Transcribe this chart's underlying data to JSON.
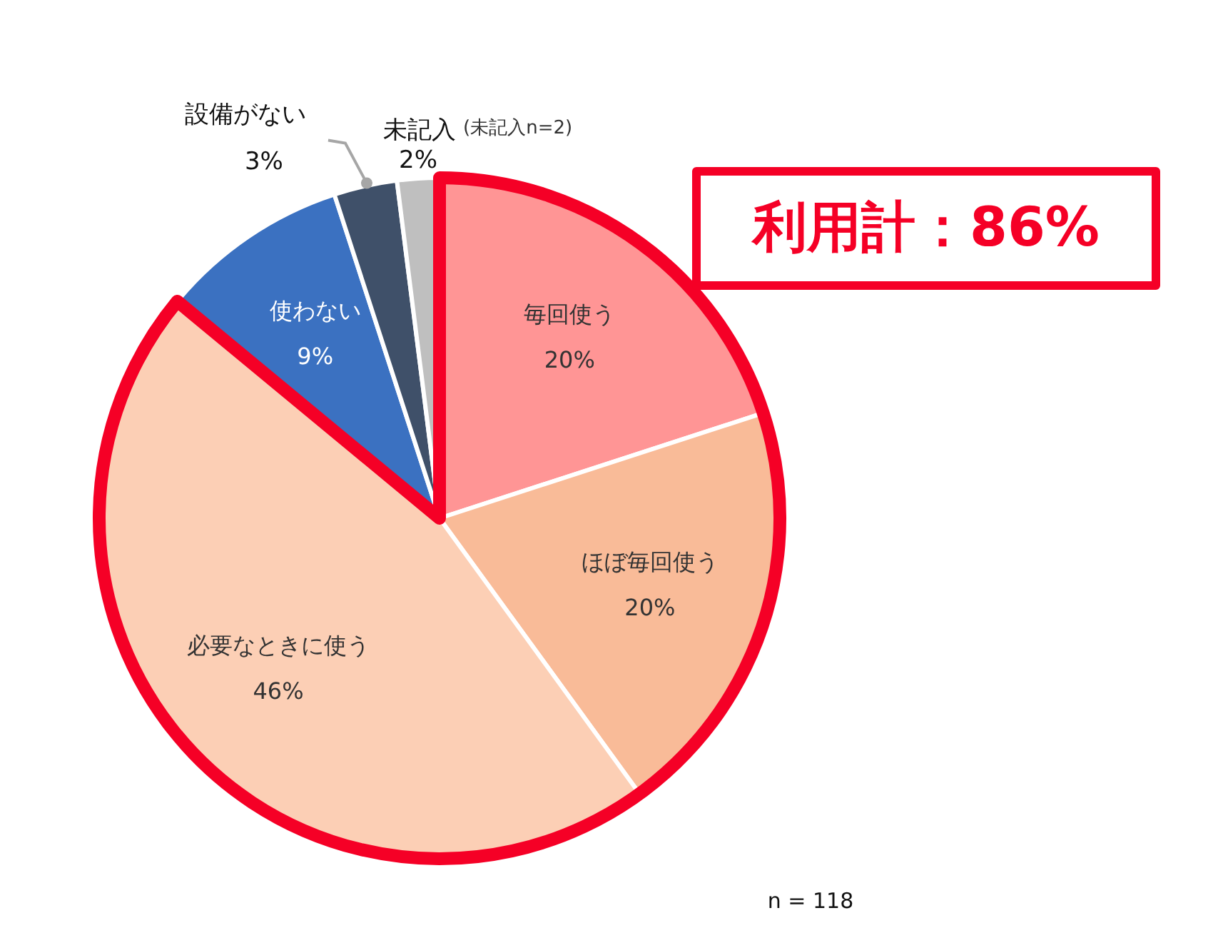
{
  "chart_data": {
    "type": "pie",
    "categories": [
      "毎回使う",
      "ほぼ毎回使う",
      "必要なときに使う",
      "使わない",
      "設備がない",
      "未記入"
    ],
    "values": [
      20,
      20,
      46,
      9,
      3,
      2
    ],
    "colors": [
      "#ff9595",
      "#f9bb98",
      "#fccfb5",
      "#3b71c1",
      "#3f5069",
      "#bfbfbf"
    ],
    "value_labels": [
      "20%",
      "20%",
      "46%",
      "9%",
      "3%",
      "2%"
    ],
    "annotations": [
      "利用計：86%",
      "(未記入n=2)",
      "n = 118"
    ],
    "legend": false
  }
}
